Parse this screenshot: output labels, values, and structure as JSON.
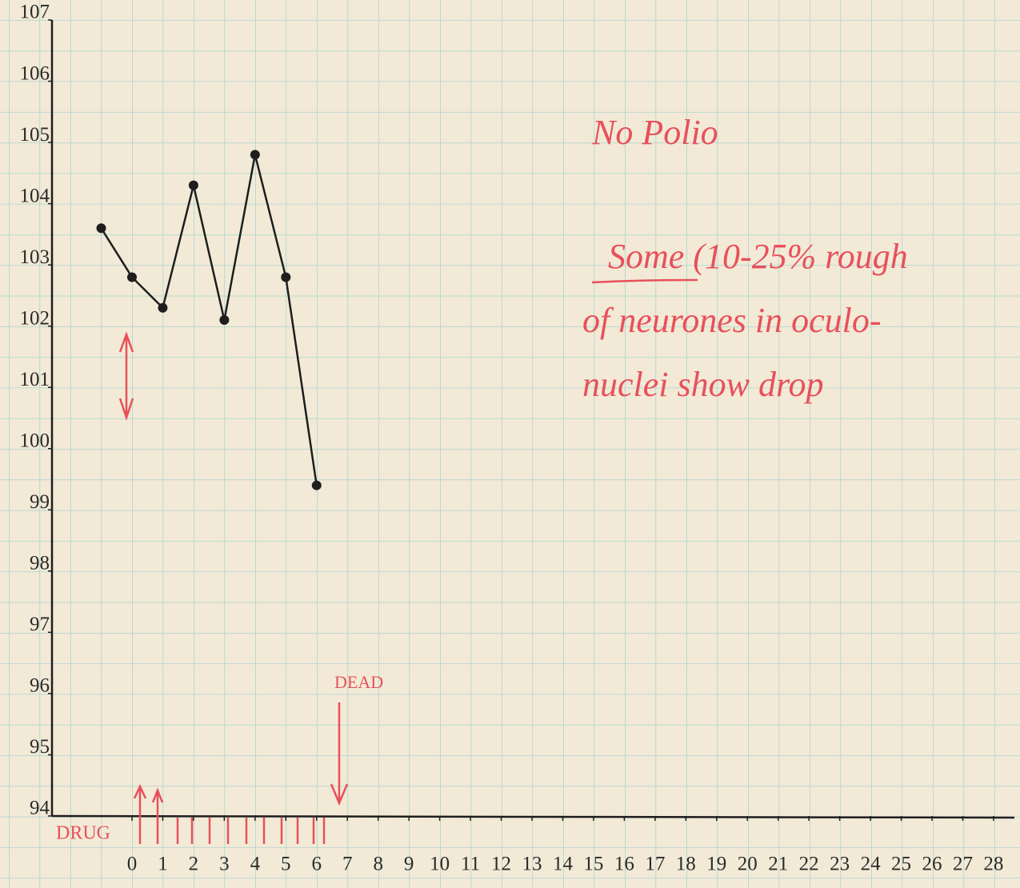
{
  "chart_data": {
    "type": "line",
    "x": [
      -1,
      0,
      1,
      2,
      3,
      4,
      5,
      6
    ],
    "series": [
      {
        "color": "#1e1e1e",
        "values": [
          103.6,
          102.8,
          102.3,
          104.3,
          102.1,
          104.8,
          102.8,
          99.4
        ]
      }
    ],
    "xlim": [
      -2.6,
      28.6
    ],
    "xticks": [
      0,
      1,
      2,
      3,
      4,
      5,
      6,
      7,
      8,
      9,
      10,
      11,
      12,
      13,
      14,
      15,
      16,
      17,
      18,
      19,
      20,
      21,
      22,
      23,
      24,
      25,
      26,
      27,
      28
    ],
    "ylim": [
      94,
      107
    ],
    "yticks": [
      94,
      95,
      96,
      97,
      98,
      99,
      100,
      101,
      102,
      103,
      104,
      105,
      106,
      107
    ],
    "annotations": {
      "drug": "DRUG",
      "dead": "DEAD",
      "note_title": "No Polio",
      "note_lines": [
        "Some (10-25% rough",
        "of neurones in oculo-",
        "nuclei show drop"
      ]
    }
  }
}
